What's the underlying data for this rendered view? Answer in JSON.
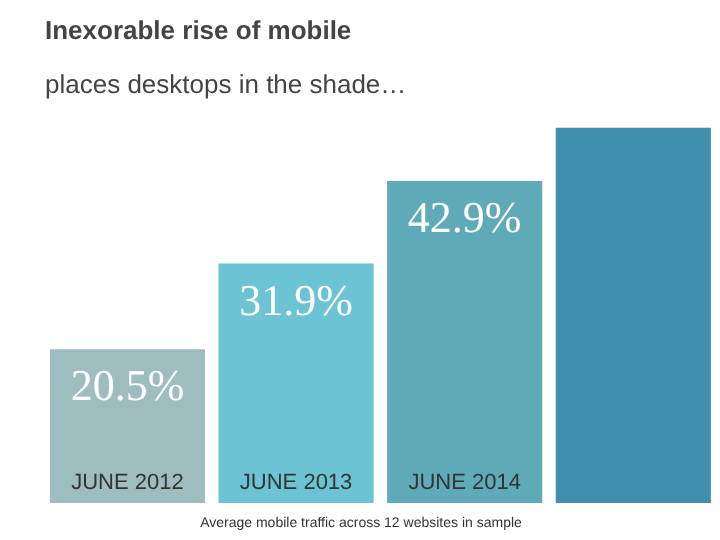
{
  "chart_data": {
    "type": "bar",
    "title": "Inexorable rise of mobile",
    "subtitle": "places desktops in the shade…",
    "categories": [
      "JUNE 2012",
      "JUNE 2013",
      "JUNE 2014",
      null
    ],
    "values": [
      20.5,
      31.9,
      42.9,
      50
    ],
    "value_labels": [
      "20.5%",
      "31.9%",
      "42.9%",
      null
    ],
    "colors": [
      "#9fbcbf",
      "#6cc3d3",
      "#5faab8",
      "#3f8fae"
    ],
    "tick_labels": "x",
    "grid": false,
    "annotations": [
      "Average mobile traffic across 12 websites in sample"
    ]
  }
}
